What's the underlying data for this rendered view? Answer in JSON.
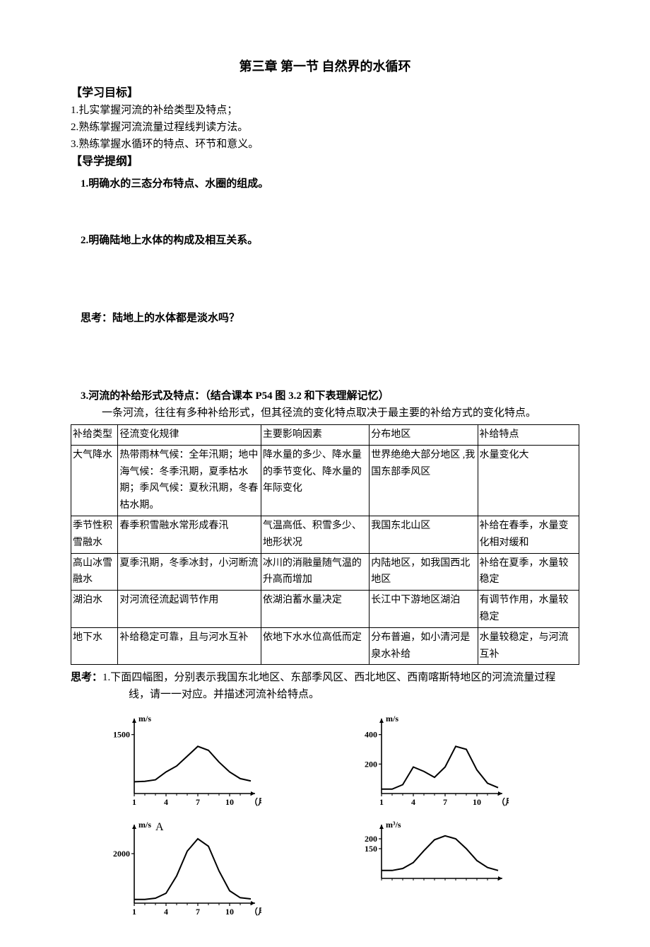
{
  "title": "第三章 第一节   自然界的水循环",
  "sections": {
    "goals_head": "【学习目标】",
    "goals": [
      "1.扎实掌握河流的补给类型及特点；",
      "2.熟练掌握河流流量过程线判读方法。",
      "3.熟练掌握水循环的特点、环节和意义。"
    ],
    "outline_head": "【导学提纲】",
    "outline1": "1.明确水的三态分布特点、水圈的组成。",
    "outline2": "2.明确陆地上水体的构成及相互关系。",
    "think1": "思考：陆地上的水体都是淡水吗？",
    "outline3": "3.河流的补给形式及特点：（结合课本 P54 图 3.2 和下表理解记忆）",
    "outline3_sub": "一条河流，往往有多种补给形式，但其径流的变化特点取决于最主要的补给方式的变化特点。"
  },
  "table": {
    "headers": [
      "补给类型",
      "径流变化规律",
      "主要影响因素",
      "分布地区",
      "补给特点"
    ],
    "rows": [
      [
        "大气降水",
        "热带雨林气候：全年汛期；地中海气候：冬季汛期，夏季枯水期；季风气候：夏秋汛期，冬春枯水期。",
        "降水量的多少、降水量的季节变化、降水量的年际变化",
        "世界绝绝大部分地区 ,我国东部季风区",
        "水量变化大"
      ],
      [
        "季节性积雪融水",
        "春季积雪融水常形成春汛",
        "气温高低、积雪多少、地形状况",
        "我国东北山区",
        "补给在春季，水量变化相对缓和"
      ],
      [
        "高山冰雪融水",
        "夏季汛期，冬季冰封，小河断流",
        "冰川的消融量随气温的升高而增加",
        "内陆地区，如我国西北地区",
        "补给在夏季，水量较稳定"
      ],
      [
        "湖泊水",
        "对河流径流起调节作用",
        "依湖泊蓄水量决定",
        "长江中下游地区湖泊",
        "有调节作用，水量较稳定"
      ],
      [
        "地下水",
        "补给稳定可靠，且与河水互补",
        "依地下水水位高低而定",
        "分布普遍，如小清河是泉水补给",
        "水量较稳定，与河流互补"
      ]
    ]
  },
  "think2": {
    "label": "思考：",
    "text1": "1.下面四幅图，分别表示我国东北地区、东部季风区、西北地区、西南喀斯特地区的河流流量过程",
    "text2": "线，请一一对应。并描述河流补给特点。"
  },
  "charts": {
    "unit_ms": "m/s",
    "unit_m3s": "m³/s",
    "month_label": "（月）",
    "row1": {
      "left": {
        "ylabel": "m/s",
        "yticks": [
          1500
        ],
        "xticks": [
          1,
          4,
          7,
          10
        ],
        "curve": [
          [
            1,
            300
          ],
          [
            2,
            310
          ],
          [
            3,
            350
          ],
          [
            4,
            550
          ],
          [
            5,
            700
          ],
          [
            6,
            950
          ],
          [
            7,
            1200
          ],
          [
            8,
            1100
          ],
          [
            9,
            800
          ],
          [
            10,
            550
          ],
          [
            11,
            380
          ],
          [
            12,
            320
          ]
        ],
        "ymax": 1800
      },
      "right": {
        "ylabel": "m/s",
        "yticks": [
          200,
          400
        ],
        "xticks": [
          1,
          4,
          7,
          10
        ],
        "curve": [
          [
            1,
            30
          ],
          [
            2,
            30
          ],
          [
            3,
            60
          ],
          [
            4,
            180
          ],
          [
            5,
            150
          ],
          [
            6,
            110
          ],
          [
            7,
            180
          ],
          [
            8,
            320
          ],
          [
            9,
            300
          ],
          [
            10,
            160
          ],
          [
            11,
            70
          ],
          [
            12,
            40
          ]
        ],
        "ymax": 480
      }
    },
    "row2": {
      "left": {
        "annot": "A",
        "ylabel": "m/s",
        "yticks": [
          2000
        ],
        "xticks": [
          1,
          4,
          7,
          10
        ],
        "curve": [
          [
            1,
            150
          ],
          [
            2,
            150
          ],
          [
            3,
            200
          ],
          [
            4,
            400
          ],
          [
            5,
            1100
          ],
          [
            6,
            2100
          ],
          [
            7,
            2600
          ],
          [
            8,
            2300
          ],
          [
            9,
            1300
          ],
          [
            10,
            500
          ],
          [
            11,
            220
          ],
          [
            12,
            170
          ]
        ],
        "ymax": 3000
      },
      "right": {
        "ylabel": "m³/s",
        "yticks": [
          150,
          200
        ],
        "xticks": [],
        "curve": [
          [
            1,
            40
          ],
          [
            2,
            40
          ],
          [
            3,
            50
          ],
          [
            4,
            80
          ],
          [
            5,
            140
          ],
          [
            6,
            195
          ],
          [
            7,
            215
          ],
          [
            8,
            200
          ],
          [
            9,
            150
          ],
          [
            10,
            90
          ],
          [
            11,
            55
          ],
          [
            12,
            40
          ]
        ],
        "ymax": 250
      }
    },
    "stroke": "#000000",
    "stroke_width": 1.6
  }
}
